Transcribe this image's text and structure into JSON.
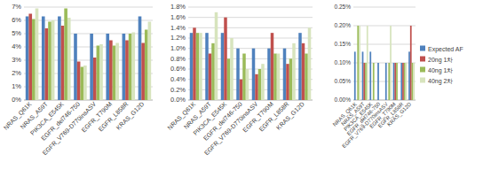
{
  "chart_data": [
    {
      "type": "bar",
      "categories": [
        "NRAS_Q61K",
        "NRAS_A59T",
        "PIK3CA_E545K",
        "EGFR_del746-750",
        "EGFR_V769-D770insASV",
        "EGFR_T790M",
        "EGFR_L858R",
        "KRAS_G12D"
      ],
      "series": [
        {
          "name": "Expected AF",
          "color": "#4f81bd",
          "values": [
            6.3,
            6.3,
            6.3,
            5.0,
            5.0,
            5.0,
            5.0,
            6.3
          ]
        },
        {
          "name": "20ng 1차",
          "color": "#c0504d",
          "values": [
            6.5,
            5.4,
            5.6,
            2.9,
            3.2,
            4.5,
            4.5,
            4.3
          ]
        },
        {
          "name": "40ng 1차",
          "color": "#9bbb59",
          "values": [
            6.1,
            5.9,
            6.9,
            2.5,
            4.1,
            4.1,
            5.0,
            5.3
          ]
        },
        {
          "name": "40ng 2차",
          "color": "#d7e4bd",
          "values": [
            6.9,
            6.0,
            6.2,
            2.6,
            4.2,
            4.3,
            5.1,
            5.9
          ]
        }
      ],
      "ylim": [
        0,
        7
      ],
      "yticks": [
        {
          "value": 0,
          "label": "0%"
        },
        {
          "value": 1,
          "label": "1%"
        },
        {
          "value": 2,
          "label": "2%"
        },
        {
          "value": 3,
          "label": "3%"
        },
        {
          "value": 4,
          "label": "4%"
        },
        {
          "value": 5,
          "label": "5%"
        },
        {
          "value": 6,
          "label": "6%"
        },
        {
          "value": 7,
          "label": "7%"
        }
      ],
      "grid": true
    },
    {
      "type": "bar",
      "categories": [
        "NRAS_Q61K",
        "NRAS_A59T",
        "PIK3CA_E545K",
        "EGFR_del746-750",
        "EGFR_V769-D770insASV",
        "EGFR_T790M",
        "EGFR_L858R",
        "KRAS_G12D"
      ],
      "series": [
        {
          "name": "Expected AF",
          "color": "#4f81bd",
          "values": [
            1.3,
            1.3,
            1.3,
            1.0,
            1.0,
            1.0,
            1.0,
            1.3
          ]
        },
        {
          "name": "20ng 1차",
          "color": "#c0504d",
          "values": [
            1.4,
            0.9,
            1.6,
            0.4,
            0.5,
            1.3,
            0.7,
            1.1
          ]
        },
        {
          "name": "40ng 1차",
          "color": "#9bbb59",
          "values": [
            1.3,
            1.1,
            0.8,
            0.9,
            0.6,
            0.9,
            0.8,
            0.9
          ]
        },
        {
          "name": "40ng 2차",
          "color": "#d7e4bd",
          "values": [
            1.3,
            1.7,
            1.2,
            0.6,
            0.7,
            0.9,
            1.1,
            1.4
          ]
        }
      ],
      "ylim": [
        0,
        1.8
      ],
      "yticks": [
        {
          "value": 0,
          "label": "0.0%"
        },
        {
          "value": 0.2,
          "label": "0.2%"
        },
        {
          "value": 0.4,
          "label": "0.4%"
        },
        {
          "value": 0.6,
          "label": "0.6%"
        },
        {
          "value": 0.8,
          "label": "0.8%"
        },
        {
          "value": 1.0,
          "label": "1.0%"
        },
        {
          "value": 1.2,
          "label": "1.2%"
        },
        {
          "value": 1.4,
          "label": "1.4%"
        },
        {
          "value": 1.6,
          "label": "1.6%"
        },
        {
          "value": 1.8,
          "label": "1.8%"
        }
      ],
      "grid": true
    },
    {
      "type": "bar",
      "categories": [
        "NRAS_Q61K",
        "NRAS_A59T",
        "PIK3CA_E545K",
        "EGFR_del746-750",
        "EGFR_V769-D770insASV",
        "EGFR_T790M",
        "EGFR_L858R",
        "KRAS_G12D"
      ],
      "series": [
        {
          "name": "Expected AF",
          "color": "#4f81bd",
          "values": [
            0.13,
            0.13,
            0.13,
            0.1,
            0.1,
            0.1,
            0.1,
            0.13
          ]
        },
        {
          "name": "20ng 1차",
          "color": "#c0504d",
          "values": [
            0,
            0.1,
            0,
            0,
            0,
            0.1,
            0.1,
            0.2
          ]
        },
        {
          "name": "40ng 1차",
          "color": "#9bbb59",
          "values": [
            0.2,
            0.1,
            0.1,
            0,
            0.1,
            0.1,
            0.1,
            0.1
          ]
        },
        {
          "name": "40ng 2차",
          "color": "#d7e4bd",
          "values": [
            0.2,
            0.2,
            0,
            0,
            0.2,
            0,
            0.1,
            0.1
          ]
        }
      ],
      "ylim": [
        0,
        0.25
      ],
      "yticks": [
        {
          "value": 0,
          "label": "0.00%"
        },
        {
          "value": 0.05,
          "label": "0.05%"
        },
        {
          "value": 0.1,
          "label": "0.10%"
        },
        {
          "value": 0.15,
          "label": "0.15%"
        },
        {
          "value": 0.2,
          "label": "0.20%"
        },
        {
          "value": 0.25,
          "label": "0.25%"
        }
      ],
      "grid": true,
      "legend": "right"
    }
  ]
}
